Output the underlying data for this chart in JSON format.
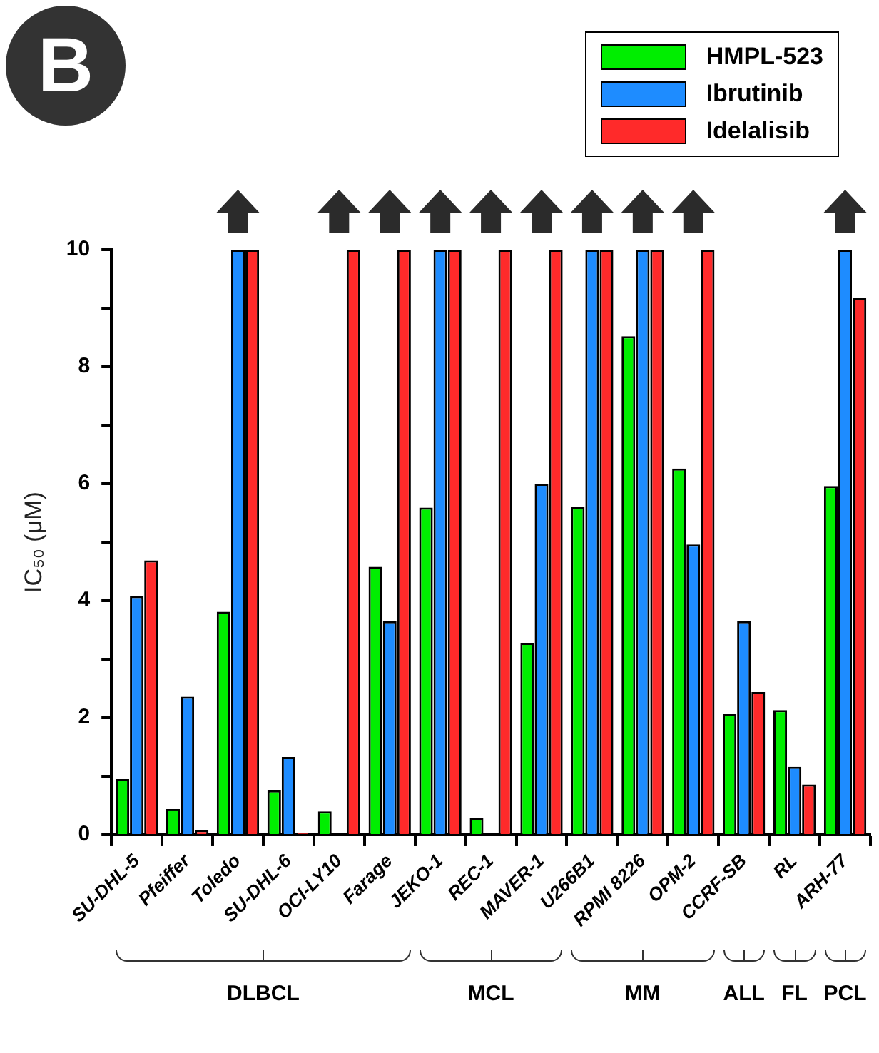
{
  "chart_data": {
    "type": "bar",
    "ylabel": "IC₅₀ (μM)",
    "categories": [
      "SU-DHL-5",
      "Pfeiffer",
      "Toledo",
      "SU-DHL-6",
      "OCI-LY10",
      "Farage",
      "JEKO-1",
      "REC-1",
      "MAVER-1",
      "U266B1",
      "RPMI 8226",
      "OPM-2",
      "CCRF-SB",
      "RL",
      "ARH-77"
    ],
    "series": [
      {
        "name": "HMPL-523",
        "color": "#00ee00",
        "values": [
          0.95,
          0.44,
          3.81,
          0.76,
          0.4,
          4.58,
          5.59,
          0.29,
          3.28,
          5.61,
          8.52,
          6.26,
          2.06,
          2.13,
          5.96
        ]
      },
      {
        "name": "Ibrutinib",
        "color": "#1e8cff",
        "values": [
          4.08,
          2.36,
          10,
          1.33,
          null,
          3.65,
          10,
          null,
          6.0,
          10,
          10,
          4.96,
          3.65,
          1.16,
          10
        ]
      },
      {
        "name": "Idelalisib",
        "color": "#ff2a2a",
        "values": [
          4.69,
          0.08,
          10,
          0.03,
          10,
          10,
          10,
          10,
          10,
          10,
          10,
          10,
          2.44,
          0.86,
          9.17
        ]
      }
    ],
    "ylim": [
      0,
      10
    ],
    "yticks": [
      0,
      {
        "value": 1,
        "label": null
      },
      2,
      {
        "value": 3,
        "label": null
      },
      4,
      {
        "value": 5,
        "label": null
      },
      6,
      {
        "value": 7,
        "label": null
      },
      8,
      {
        "value": 9,
        "label": null
      },
      10
    ],
    "grid": false,
    "legend": "top right",
    "annotations": [
      "B",
      "DLBCL",
      "MCL",
      "MM",
      "ALL",
      "FL",
      "PCL"
    ]
  }
}
